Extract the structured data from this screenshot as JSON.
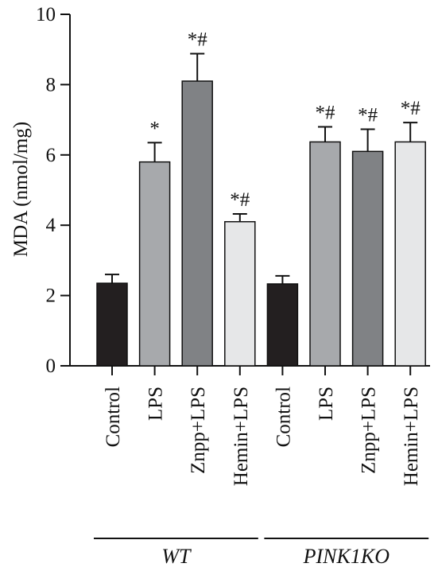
{
  "chart_data": {
    "type": "bar",
    "ylabel": "MDA (nmol/mg)",
    "xlabel": "",
    "ylim": [
      0,
      10
    ],
    "yticks": [
      0,
      2,
      4,
      6,
      8,
      10
    ],
    "categories": [
      "Control",
      "LPS",
      "Znpp+LPS",
      "Hemin+LPS",
      "Control",
      "LPS",
      "Znpp+LPS",
      "Hemin+LPS"
    ],
    "values": [
      2.35,
      5.8,
      8.1,
      4.1,
      2.33,
      6.37,
      6.1,
      6.37
    ],
    "errors": [
      0.25,
      0.55,
      0.78,
      0.22,
      0.23,
      0.43,
      0.63,
      0.55
    ],
    "significance": [
      "",
      "*",
      "*#",
      "*#",
      "",
      "*#",
      "*#",
      "*#"
    ],
    "bar_colors": [
      "#231f20",
      "#a7a9ac",
      "#808285",
      "#e6e7e8",
      "#231f20",
      "#a7a9ac",
      "#808285",
      "#e6e7e8"
    ],
    "groups": [
      {
        "label": "WT",
        "members": [
          0,
          1,
          2,
          3
        ]
      },
      {
        "label": "PINK1KO",
        "members": [
          4,
          5,
          6,
          7
        ]
      }
    ]
  }
}
